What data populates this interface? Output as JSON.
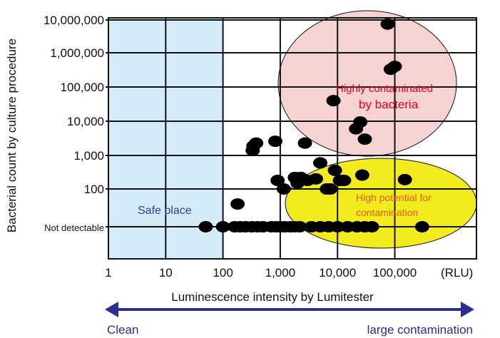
{
  "chart_data": {
    "type": "scatter",
    "xlabel": "Luminescence intensity by Lumitester",
    "x_unit": "(RLU)",
    "ylabel": "Bacterial count by culture procedure",
    "x_scale": "log",
    "y_scale": "log",
    "xlim": [
      1,
      1000000
    ],
    "x_ticks": [
      {
        "value": 1,
        "label": "1"
      },
      {
        "value": 10,
        "label": "10"
      },
      {
        "value": 100,
        "label": "100"
      },
      {
        "value": 1000,
        "label": "1,000"
      },
      {
        "value": 10000,
        "label": "10,000"
      },
      {
        "value": 100000,
        "label": "100,000"
      }
    ],
    "y_ticks": [
      {
        "value": 10000000,
        "label": "10,000,000"
      },
      {
        "value": 1000000,
        "label": "1,000,000"
      },
      {
        "value": 100000,
        "label": "100,000"
      },
      {
        "value": 10000,
        "label": "10,000"
      },
      {
        "value": 1000,
        "label": "1,000"
      },
      {
        "value": 100,
        "label": "100"
      },
      {
        "value": 10,
        "label": "Not detectable"
      }
    ],
    "grid": true,
    "regions": [
      {
        "label": "Safe place",
        "x_range": [
          1,
          100
        ],
        "color": "#d6ebf8"
      },
      {
        "label": "Highly contaminated by bacteria",
        "label_lines": [
          "Highly contaminated",
          "by bacteria"
        ],
        "color": "#f6d3d3"
      },
      {
        "label": "High potential for contamination",
        "label_lines": [
          "High potential for",
          "contamination"
        ],
        "color": "#f2eb1e"
      }
    ],
    "points": [
      {
        "x": 50,
        "y": 10
      },
      {
        "x": 100,
        "y": 10
      },
      {
        "x": 160,
        "y": 10
      },
      {
        "x": 200,
        "y": 10
      },
      {
        "x": 250,
        "y": 10
      },
      {
        "x": 320,
        "y": 10
      },
      {
        "x": 400,
        "y": 10
      },
      {
        "x": 500,
        "y": 10
      },
      {
        "x": 700,
        "y": 10
      },
      {
        "x": 850,
        "y": 10
      },
      {
        "x": 1000,
        "y": 10
      },
      {
        "x": 1200,
        "y": 10
      },
      {
        "x": 1500,
        "y": 10
      },
      {
        "x": 1800,
        "y": 10
      },
      {
        "x": 2200,
        "y": 10
      },
      {
        "x": 3500,
        "y": 10
      },
      {
        "x": 5000,
        "y": 10
      },
      {
        "x": 7000,
        "y": 10
      },
      {
        "x": 10000,
        "y": 10
      },
      {
        "x": 15000,
        "y": 10
      },
      {
        "x": 22000,
        "y": 10
      },
      {
        "x": 30000,
        "y": 10
      },
      {
        "x": 40000,
        "y": 10
      },
      {
        "x": 300000,
        "y": 10
      },
      {
        "x": 180,
        "y": 40
      },
      {
        "x": 900,
        "y": 180
      },
      {
        "x": 1150,
        "y": 100
      },
      {
        "x": 1800,
        "y": 220
      },
      {
        "x": 2000,
        "y": 150
      },
      {
        "x": 2300,
        "y": 220
      },
      {
        "x": 3000,
        "y": 180
      },
      {
        "x": 4200,
        "y": 200
      },
      {
        "x": 5000,
        "y": 600
      },
      {
        "x": 6500,
        "y": 100
      },
      {
        "x": 7500,
        "y": 100
      },
      {
        "x": 9000,
        "y": 360
      },
      {
        "x": 11000,
        "y": 180
      },
      {
        "x": 13000,
        "y": 180
      },
      {
        "x": 27000,
        "y": 260
      },
      {
        "x": 150000,
        "y": 190
      },
      {
        "x": 330,
        "y": 1400
      },
      {
        "x": 340,
        "y": 1900
      },
      {
        "x": 380,
        "y": 2300
      },
      {
        "x": 820,
        "y": 2600
      },
      {
        "x": 2700,
        "y": 2300
      },
      {
        "x": 21000,
        "y": 6000
      },
      {
        "x": 25000,
        "y": 9500
      },
      {
        "x": 30000,
        "y": 3000
      },
      {
        "x": 8500,
        "y": 40000
      },
      {
        "x": 75000,
        "y": 7500000
      },
      {
        "x": 85000,
        "y": 330000
      },
      {
        "x": 100000,
        "y": 400000
      }
    ],
    "arrow": {
      "left_label": "Clean",
      "right_label": "large contamination"
    }
  }
}
